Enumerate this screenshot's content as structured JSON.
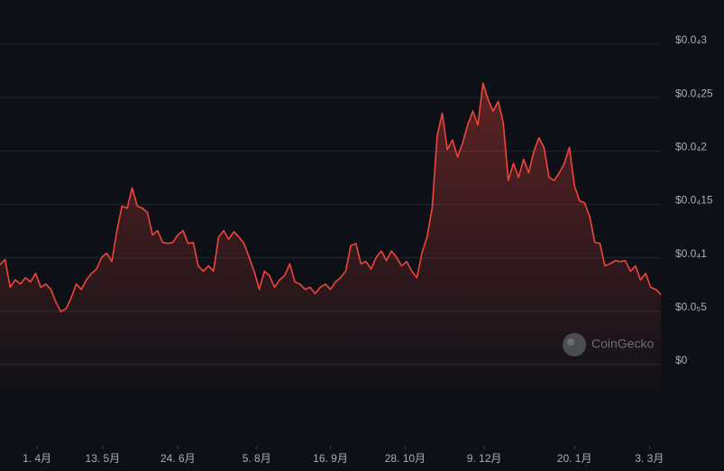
{
  "chart_data": {
    "type": "line",
    "color": "#f0443a",
    "grid": true,
    "watermark": "CoinGecko",
    "values": [
      9e-06,
      9.5e-06,
      6.9e-06,
      7.6e-06,
      7.2e-06,
      7.8e-06,
      7.4e-06,
      8.2e-06,
      6.9e-06,
      7.2e-06,
      6.7e-06,
      5.5e-06,
      4.6e-06,
      4.9e-06,
      5.9e-06,
      7.2e-06,
      6.7e-06,
      7.6e-06,
      8.2e-06,
      8.6e-06,
      9.7e-06,
      1.01e-05,
      9.3e-06,
      1.22e-05,
      1.45e-05,
      1.43e-05,
      1.62e-05,
      1.45e-05,
      1.43e-05,
      1.39e-05,
      1.18e-05,
      1.22e-05,
      1.11e-05,
      1.1e-05,
      1.11e-05,
      1.18e-05,
      1.22e-05,
      1.1e-05,
      1.11e-05,
      8.9e-06,
      8.4e-06,
      8.9e-06,
      8.4e-06,
      1.16e-05,
      1.22e-05,
      1.14e-05,
      1.21e-05,
      1.16e-05,
      1.1e-05,
      9.7e-06,
      8.4e-06,
      6.7e-06,
      8.4e-06,
      8e-06,
      6.9e-06,
      7.6e-06,
      8e-06,
      9.1e-06,
      7.4e-06,
      7.2e-06,
      6.7e-06,
      6.9e-06,
      6.3e-06,
      6.9e-06,
      7.2e-06,
      6.7e-06,
      7.4e-06,
      7.8e-06,
      8.4e-06,
      1.08e-05,
      1.1e-05,
      9.1e-06,
      9.3e-06,
      8.6e-06,
      9.7e-06,
      1.03e-05,
      9.4e-06,
      1.03e-05,
      9.7e-06,
      8.9e-06,
      9.3e-06,
      8.4e-06,
      7.8e-06,
      1.01e-05,
      1.16e-05,
      1.43e-05,
      2.11e-05,
      2.32e-05,
      1.98e-05,
      2.07e-05,
      1.91e-05,
      2.04e-05,
      2.21e-05,
      2.34e-05,
      2.21e-05,
      2.6e-05,
      2.45e-05,
      2.34e-05,
      2.43e-05,
      2.23e-05,
      1.69e-05,
      1.85e-05,
      1.72e-05,
      1.89e-05,
      1.76e-05,
      1.96e-05,
      2.09e-05,
      2e-05,
      1.72e-05,
      1.69e-05,
      1.76e-05,
      1.85e-05,
      2e-05,
      1.64e-05,
      1.5e-05,
      1.48e-05,
      1.35e-05,
      1.11e-05,
      1.1e-05,
      8.9e-06,
      9.1e-06,
      9.4e-06,
      9.3e-06,
      9.4e-06,
      8.4e-06,
      8.9e-06,
      7.6e-06,
      8.2e-06,
      6.9e-06,
      6.7e-06,
      6.2e-06
    ],
    "xlim": [
      0,
      130
    ],
    "xticks": [
      {
        "value": 7.3,
        "label": "1. 4月"
      },
      {
        "value": 20.2,
        "label": "13. 5月"
      },
      {
        "value": 35,
        "label": "24. 6月"
      },
      {
        "value": 50.5,
        "label": "5. 8月"
      },
      {
        "value": 65,
        "label": "16. 9月"
      },
      {
        "value": 79.7,
        "label": "28. 10月"
      },
      {
        "value": 95.25,
        "label": "9. 12月"
      },
      {
        "value": 113,
        "label": "20. 1月"
      },
      {
        "value": 127.75,
        "label": "3. 3月"
      }
    ],
    "ylim": [
      0,
      3e-05
    ],
    "yticks": [
      {
        "value": 0,
        "label": "$0"
      },
      {
        "value": 5e-06,
        "label": "$0.0₅5"
      },
      {
        "value": 1e-05,
        "label": "$0.0₄1"
      },
      {
        "value": 1.5e-05,
        "label": "$0.0₄15"
      },
      {
        "value": 2e-05,
        "label": "$0.0₄2"
      },
      {
        "value": 2.5e-05,
        "label": "$0.0₄25"
      },
      {
        "value": 3e-05,
        "label": "$0.0₄3"
      }
    ]
  }
}
